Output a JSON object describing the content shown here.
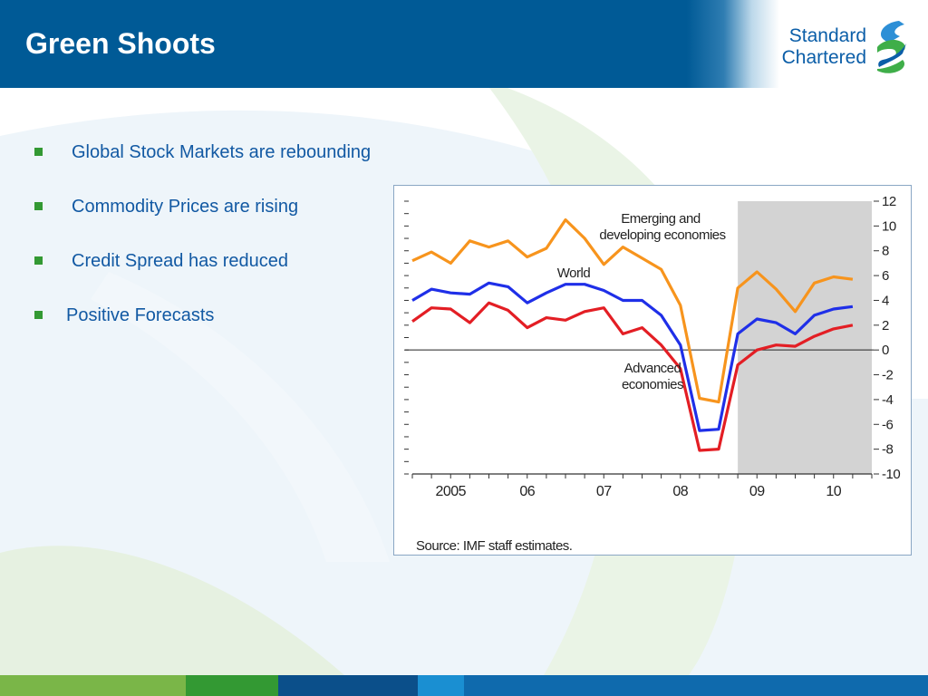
{
  "slide": {
    "title": "Green Shoots",
    "logo_line1": "Standard",
    "logo_line2": "Chartered"
  },
  "bullets": [
    {
      "text": "Global Stock Markets are rebounding"
    },
    {
      "text": "Commodity Prices are rising"
    },
    {
      "text": "Credit Spread has reduced"
    },
    {
      "text": "Positive Forecasts"
    }
  ],
  "colors": {
    "header_blue": "#005a96",
    "text_blue": "#1259a3",
    "bullet_green": "#339933",
    "emerging": "#f7941d",
    "world": "#1f2fe8",
    "advanced": "#e31e24",
    "forecast_shade": "#d3d3d3"
  },
  "chart_data": {
    "type": "line",
    "x_tick_labels": [
      "2005",
      "06",
      "07",
      "08",
      "09",
      "10"
    ],
    "y_ticks": [
      12,
      10,
      8,
      6,
      4,
      2,
      0,
      -2,
      -4,
      -6,
      -8,
      -10
    ],
    "ylim": [
      -10,
      12
    ],
    "x_range": [
      2004.5,
      2010.5
    ],
    "forecast_region": [
      2008.75,
      2010.5
    ],
    "grid": false,
    "series": [
      {
        "name": "Emerging and developing economies",
        "label_lines": [
          "Emerging and",
          "developing economies"
        ],
        "color_key": "emerging",
        "x": [
          2004.5,
          2004.75,
          2005,
          2005.25,
          2005.5,
          2005.75,
          2006,
          2006.25,
          2006.5,
          2006.75,
          2007,
          2007.25,
          2007.5,
          2007.75,
          2008,
          2008.25,
          2008.5,
          2008.75,
          2009,
          2009.25,
          2009.5,
          2009.75,
          2010,
          2010.25
        ],
        "values": [
          7.2,
          7.9,
          7.0,
          8.8,
          8.3,
          8.8,
          7.5,
          8.2,
          10.5,
          9.0,
          6.9,
          8.3,
          7.4,
          6.5,
          3.6,
          -3.9,
          -4.2,
          5.0,
          6.3,
          4.9,
          3.1,
          5.4,
          5.9,
          5.7
        ]
      },
      {
        "name": "World",
        "label_lines": [
          "World"
        ],
        "color_key": "world",
        "x": [
          2004.5,
          2004.75,
          2005,
          2005.25,
          2005.5,
          2005.75,
          2006,
          2006.25,
          2006.5,
          2006.75,
          2007,
          2007.25,
          2007.5,
          2007.75,
          2008,
          2008.25,
          2008.5,
          2008.75,
          2009,
          2009.25,
          2009.5,
          2009.75,
          2010,
          2010.25
        ],
        "values": [
          4.0,
          4.9,
          4.6,
          4.5,
          5.4,
          5.1,
          3.8,
          4.6,
          5.3,
          5.3,
          4.8,
          4.0,
          4.0,
          2.8,
          0.4,
          -6.5,
          -6.4,
          1.3,
          2.5,
          2.2,
          1.3,
          2.8,
          3.3,
          3.5
        ]
      },
      {
        "name": "Advanced economies",
        "label_lines": [
          "Advanced",
          "economies"
        ],
        "color_key": "advanced",
        "x": [
          2004.5,
          2004.75,
          2005,
          2005.25,
          2005.5,
          2005.75,
          2006,
          2006.25,
          2006.5,
          2006.75,
          2007,
          2007.25,
          2007.5,
          2007.75,
          2008,
          2008.25,
          2008.5,
          2008.75,
          2009,
          2009.25,
          2009.5,
          2009.75,
          2010,
          2010.25
        ],
        "values": [
          2.3,
          3.4,
          3.3,
          2.2,
          3.8,
          3.2,
          1.8,
          2.6,
          2.4,
          3.1,
          3.4,
          1.3,
          1.8,
          0.4,
          -1.5,
          -8.1,
          -8.0,
          -1.2,
          0.0,
          0.4,
          0.3,
          1.1,
          1.7,
          2.0
        ]
      }
    ],
    "source_note": "Source: IMF staff estimates."
  }
}
